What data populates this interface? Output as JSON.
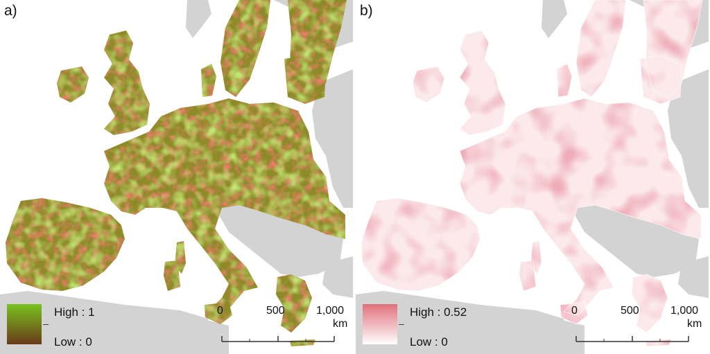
{
  "panels": [
    {
      "label": "a)",
      "legend": {
        "high": "High : 1",
        "low": "Low : 0",
        "high_color": "#79c21e",
        "low_color": "#6a3a1a"
      },
      "colors": {
        "base": "#8d8a28",
        "hot": "#d8322a",
        "cool": "#86c82a"
      }
    },
    {
      "label": "b)",
      "legend": {
        "high": "High : 0.52",
        "low": "Low : 0",
        "high_color": "#e0707a",
        "low_color": "#ffffff"
      },
      "colors": {
        "base": "#f6d6da",
        "hot": "#e07a86",
        "cool": "#fbe9eb"
      }
    }
  ],
  "scalebar": {
    "ticks": [
      "0",
      "500",
      "1,000"
    ],
    "unit": "km"
  },
  "map_colors": {
    "sea": "#ffffff",
    "land_other": "#d3d3d3",
    "border": "#bfbfbf"
  }
}
